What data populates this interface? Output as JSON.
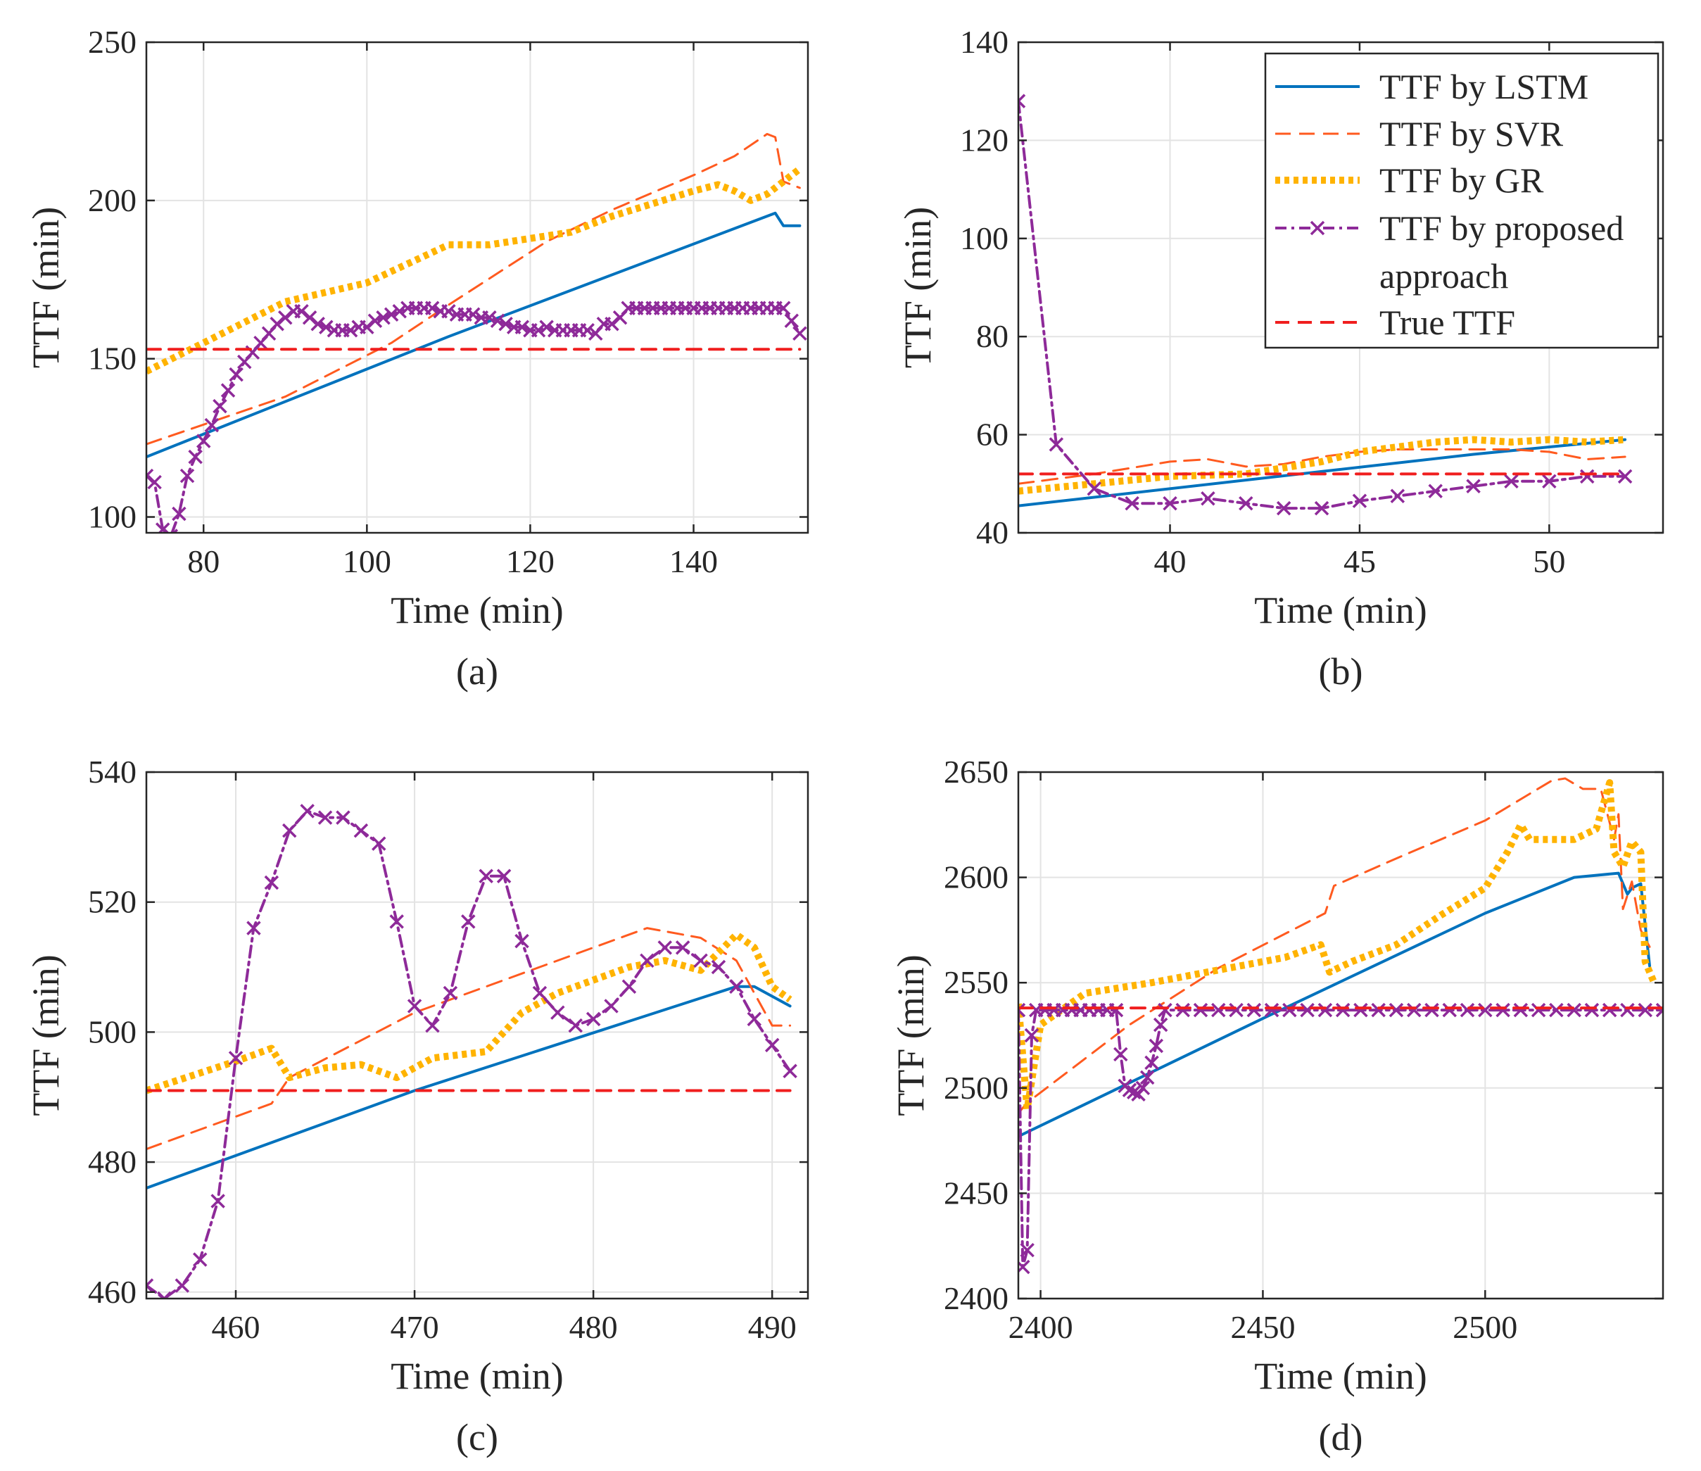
{
  "figure": {
    "legend": {
      "entries": [
        {
          "key": "lstm",
          "label": "TTF by LSTM"
        },
        {
          "key": "svr",
          "label": "TTF by SVR"
        },
        {
          "key": "gr",
          "label": "TTF by GR"
        },
        {
          "key": "prop",
          "label_lines": [
            "TTF by proposed",
            " approach"
          ]
        },
        {
          "key": "true",
          "label": "True TTF"
        }
      ]
    },
    "series_styles": {
      "lstm": {
        "color": "#0072BD",
        "dash": "",
        "width": 4
      },
      "svr": {
        "color": "#FF5A1F",
        "dash": "22 12",
        "width": 3
      },
      "gr": {
        "color": "#FFB300",
        "dash": "7 6",
        "width": 10
      },
      "prop": {
        "color": "#8E2A99",
        "dash": "16 7 4 7",
        "width": 4,
        "marker": "x"
      },
      "true": {
        "color": "#F01E1E",
        "dash": "20 12",
        "width": 4
      }
    }
  },
  "chart_data": [
    {
      "type": "line",
      "caption": "(a)",
      "xlabel": "Time (min)",
      "ylabel": "TTF (min)",
      "xlim": [
        73,
        154
      ],
      "ylim": [
        95,
        250
      ],
      "xticks": [
        80,
        100,
        120,
        140
      ],
      "yticks": [
        100,
        150,
        200,
        250
      ],
      "grid": true,
      "legend": false,
      "series": [
        {
          "key": "lstm",
          "name": "TTF by LSTM",
          "x": [
            73,
            110,
            150,
            151,
            153
          ],
          "y": [
            119,
            157,
            196,
            192,
            192
          ]
        },
        {
          "key": "svr",
          "name": "TTF by SVR",
          "x": [
            73,
            90,
            103,
            110,
            122,
            130,
            140,
            145,
            149,
            150,
            151,
            153
          ],
          "y": [
            123,
            138,
            155,
            167,
            187,
            197,
            208,
            214,
            221,
            220,
            206,
            204
          ]
        },
        {
          "key": "gr",
          "name": "TTF by GR",
          "x": [
            73,
            80,
            90,
            100,
            105,
            110,
            115,
            120,
            125,
            130,
            135,
            140,
            143,
            145,
            147,
            149,
            151,
            153
          ],
          "y": [
            146,
            155,
            168,
            174,
            180,
            186,
            186,
            188,
            190,
            195,
            199,
            203,
            205,
            203,
            200,
            202,
            206,
            210
          ]
        },
        {
          "key": "prop",
          "name": "TTF by proposed approach",
          "markers": true,
          "x": [
            73,
            74,
            75,
            76,
            77,
            78,
            79,
            80,
            81,
            82,
            83,
            84,
            85,
            86,
            87,
            88,
            89,
            90,
            91,
            92,
            93,
            94,
            95,
            96,
            97,
            98,
            99,
            100,
            101,
            102,
            103,
            104,
            105,
            106,
            107,
            108,
            109,
            110,
            111,
            112,
            113,
            114,
            115,
            116,
            117,
            118,
            119,
            120,
            121,
            122,
            123,
            124,
            125,
            126,
            127,
            128,
            129,
            130,
            131,
            132,
            133,
            134,
            135,
            136,
            137,
            138,
            139,
            140,
            141,
            142,
            143,
            144,
            145,
            146,
            147,
            148,
            149,
            150,
            151,
            152,
            153
          ],
          "y": [
            113,
            111,
            96,
            94,
            101,
            113,
            119,
            124,
            129,
            135,
            140,
            145,
            149,
            152,
            155,
            158,
            161,
            163,
            165,
            165,
            163,
            161,
            160,
            159,
            159,
            159,
            160,
            160,
            162,
            163,
            164,
            165,
            166,
            166,
            166,
            166,
            165,
            165,
            164,
            164,
            164,
            163,
            163,
            162,
            161,
            160,
            160,
            159,
            159,
            160,
            159,
            159,
            159,
            159,
            159,
            158,
            161,
            161,
            163,
            166,
            166,
            166,
            166,
            166,
            166,
            166,
            166,
            166,
            166,
            166,
            166,
            166,
            166,
            166,
            166,
            166,
            166,
            166,
            166,
            162,
            158
          ]
        },
        {
          "key": "true",
          "name": "True TTF",
          "x": [
            73,
            153
          ],
          "y": [
            153,
            153
          ]
        }
      ]
    },
    {
      "type": "line",
      "caption": "(b)",
      "xlabel": "Time (min)",
      "ylabel": "TTF (min)",
      "xlim": [
        36,
        53
      ],
      "ylim": [
        40,
        140
      ],
      "xticks": [
        40,
        45,
        50
      ],
      "yticks": [
        40,
        60,
        80,
        100,
        120,
        140
      ],
      "grid": true,
      "legend": true,
      "series": [
        {
          "key": "lstm",
          "name": "TTF by LSTM",
          "x": [
            36,
            44,
            48,
            52
          ],
          "y": [
            45.5,
            52.5,
            56,
            59
          ]
        },
        {
          "key": "svr",
          "name": "TTF by SVR",
          "x": [
            36,
            38,
            40,
            41,
            42,
            43,
            44,
            45,
            46,
            47,
            48,
            49,
            50,
            51,
            52
          ],
          "y": [
            50,
            52,
            54.5,
            55,
            53.5,
            54,
            55.5,
            56.5,
            57,
            57,
            57,
            57,
            56.5,
            55,
            55.5
          ]
        },
        {
          "key": "gr",
          "name": "TTF by GR",
          "x": [
            36,
            38,
            40,
            42,
            44,
            45,
            46,
            47,
            48,
            49,
            50,
            51,
            52
          ],
          "y": [
            48.5,
            50,
            51.5,
            52,
            54.5,
            56.5,
            57.5,
            58.5,
            59,
            58.5,
            59,
            58.5,
            59
          ]
        },
        {
          "key": "prop",
          "name": "TTF by proposed approach",
          "markers": true,
          "x": [
            36,
            37,
            38,
            39,
            40,
            41,
            42,
            43,
            44,
            45,
            46,
            47,
            48,
            49,
            50,
            51,
            52
          ],
          "y": [
            128,
            58,
            49,
            46,
            46,
            47,
            46,
            45,
            45,
            46.5,
            47.5,
            48.5,
            49.5,
            50.5,
            50.5,
            51.5,
            51.5
          ]
        },
        {
          "key": "true",
          "name": "True TTF",
          "x": [
            36,
            52
          ],
          "y": [
            52,
            52
          ]
        }
      ]
    },
    {
      "type": "line",
      "caption": "(c)",
      "xlabel": "Time (min)",
      "ylabel": "TTF (min)",
      "xlim": [
        455,
        492
      ],
      "ylim": [
        459,
        540
      ],
      "xticks": [
        460,
        470,
        480,
        490
      ],
      "yticks": [
        460,
        480,
        500,
        520,
        540
      ],
      "grid": true,
      "legend": false,
      "series": [
        {
          "key": "lstm",
          "name": "TTF by LSTM",
          "x": [
            455,
            470,
            488,
            489,
            491
          ],
          "y": [
            476,
            491,
            507,
            507,
            504
          ]
        },
        {
          "key": "svr",
          "name": "TTF by SVR",
          "x": [
            455,
            462,
            463,
            470,
            477,
            483,
            486,
            488,
            490,
            491
          ],
          "y": [
            482,
            489,
            493,
            503,
            510,
            516,
            514.5,
            511,
            501,
            501
          ]
        },
        {
          "key": "gr",
          "name": "TTF by GR",
          "x": [
            455,
            460,
            462,
            463,
            465,
            467,
            469,
            471,
            474,
            476,
            478,
            480,
            482,
            484,
            486,
            488,
            489,
            490,
            491
          ],
          "y": [
            491,
            495.5,
            497.5,
            493,
            494.5,
            495,
            493,
            496,
            497,
            503,
            506,
            508,
            510,
            511,
            509.5,
            515,
            513,
            507,
            505
          ]
        },
        {
          "key": "prop",
          "name": "TTF by proposed approach",
          "markers": true,
          "x": [
            455,
            456,
            457,
            458,
            459,
            460,
            461,
            462,
            463,
            464,
            465,
            466,
            467,
            468,
            469,
            470,
            471,
            472,
            473,
            474,
            475,
            476,
            477,
            478,
            479,
            480,
            481,
            482,
            483,
            484,
            485,
            486,
            487,
            488,
            489,
            490,
            491
          ],
          "y": [
            461,
            459,
            461,
            465,
            474,
            496,
            516,
            523,
            531,
            534,
            533,
            533,
            531,
            529,
            517,
            504,
            501,
            506,
            517,
            524,
            524,
            514,
            506,
            503,
            501,
            502,
            504,
            507,
            511,
            513,
            513,
            511,
            510,
            507,
            502,
            498,
            494
          ]
        },
        {
          "key": "true",
          "name": "True TTF",
          "x": [
            455,
            491
          ],
          "y": [
            491,
            491
          ]
        }
      ]
    },
    {
      "type": "line",
      "caption": "(d)",
      "xlabel": "Time (min)",
      "ylabel": "TTF (min)",
      "xlim": [
        2395,
        2540
      ],
      "ylim": [
        2400,
        2650
      ],
      "xticks": [
        2400,
        2450,
        2500
      ],
      "yticks": [
        2400,
        2450,
        2500,
        2550,
        2600,
        2650
      ],
      "grid": true,
      "legend": false,
      "series": [
        {
          "key": "lstm",
          "name": "TTF by LSTM",
          "x": [
            2395,
            2450,
            2500,
            2520,
            2525,
            2530,
            2532,
            2533,
            2535,
            2537
          ],
          "y": [
            2477,
            2533,
            2583,
            2600,
            2601,
            2602,
            2592,
            2595,
            2597,
            2558
          ]
        },
        {
          "key": "svr",
          "name": "TTF by SVR",
          "x": [
            2395,
            2397,
            2420,
            2440,
            2464,
            2466,
            2480,
            2500,
            2515,
            2518,
            2522,
            2526,
            2529,
            2530,
            2531,
            2533,
            2535,
            2537
          ],
          "y": [
            2488,
            2493,
            2530,
            2557,
            2583,
            2596,
            2609,
            2627,
            2646,
            2647,
            2642,
            2642,
            2618,
            2630,
            2585,
            2598,
            2575,
            2567
          ]
        },
        {
          "key": "gr",
          "name": "TTF by GR",
          "x": [
            2395,
            2397,
            2400,
            2410,
            2425,
            2440,
            2455,
            2463,
            2465,
            2470,
            2480,
            2490,
            2500,
            2505,
            2508,
            2510,
            2520,
            2525,
            2528,
            2529,
            2531,
            2533,
            2535,
            2536,
            2538
          ],
          "y": [
            2540,
            2490,
            2530,
            2545,
            2550,
            2556,
            2562,
            2568,
            2555,
            2560,
            2568,
            2582,
            2595,
            2612,
            2625,
            2618,
            2618,
            2623,
            2645,
            2612,
            2605,
            2617,
            2612,
            2560,
            2550
          ]
        },
        {
          "key": "prop",
          "name": "TTF by proposed approach",
          "markers": true,
          "x": [
            2395,
            2396,
            2397,
            2398,
            2399,
            2401,
            2403,
            2405,
            2407,
            2409,
            2411,
            2413,
            2415,
            2417,
            2418,
            2419,
            2420,
            2421,
            2422,
            2423,
            2424,
            2425,
            2426,
            2427,
            2428,
            2432,
            2436,
            2440,
            2444,
            2448,
            2452,
            2456,
            2460,
            2464,
            2468,
            2472,
            2476,
            2480,
            2484,
            2488,
            2492,
            2496,
            2500,
            2504,
            2508,
            2512,
            2516,
            2520,
            2524,
            2528,
            2532,
            2536,
            2540
          ],
          "y": [
            2537,
            2415,
            2423,
            2525,
            2537,
            2537,
            2537,
            2537,
            2537,
            2537,
            2537,
            2537,
            2537,
            2537,
            2516,
            2501,
            2499,
            2498,
            2497,
            2500,
            2505,
            2512,
            2520,
            2530,
            2537,
            2537,
            2537,
            2537,
            2537,
            2537,
            2537,
            2537,
            2537,
            2537,
            2537,
            2537,
            2537,
            2537,
            2537,
            2537,
            2537,
            2537,
            2537,
            2537,
            2537,
            2537,
            2537,
            2537,
            2537,
            2537,
            2537,
            2537,
            2537
          ]
        },
        {
          "key": "true",
          "name": "True TTF",
          "x": [
            2395,
            2540
          ],
          "y": [
            2538,
            2538
          ]
        }
      ]
    }
  ]
}
